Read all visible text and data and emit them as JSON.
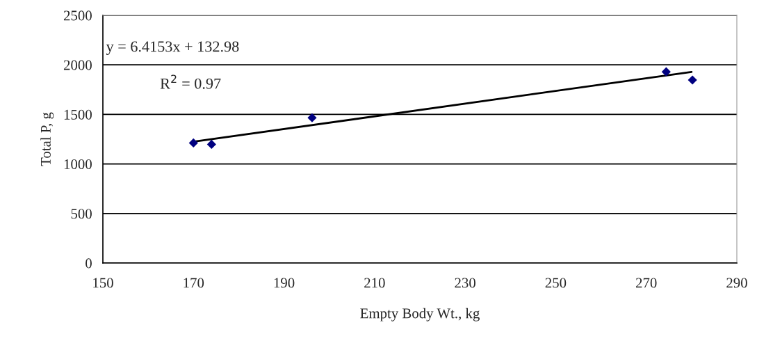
{
  "chart_data": {
    "type": "scatter",
    "xlabel": "Empty Body Wt., kg",
    "ylabel": "Total P, g",
    "xlim": [
      150,
      290
    ],
    "xticks": [
      150,
      170,
      190,
      210,
      230,
      250,
      270,
      290
    ],
    "ylim": [
      0,
      2500
    ],
    "yticks": [
      0,
      500,
      1000,
      1500,
      2000,
      2500
    ],
    "grid": "y",
    "marker": "diamond",
    "series": [
      {
        "color": "#000080",
        "x": [
          170,
          174,
          196.2,
          274.4,
          280.2
        ],
        "values": [
          1212,
          1198,
          1466,
          1930,
          1847
        ]
      },
      {
        "type": "line",
        "color": "#000000",
        "line_style": "solid",
        "marker": "none",
        "x": [
          170,
          280
        ],
        "values": [
          1224,
          1929
        ]
      }
    ],
    "annotations": [
      {
        "text": "y = 6.4153x + 132.98"
      },
      {
        "text": "R$^{2}$ = 0.97"
      }
    ]
  }
}
